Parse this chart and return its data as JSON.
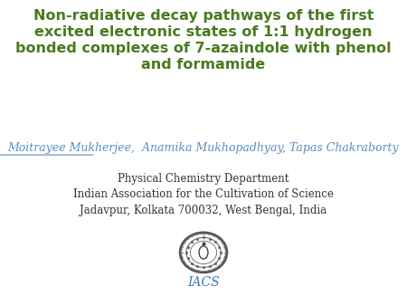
{
  "title_line1": "Non-radiative decay pathways of the first",
  "title_line2": "excited electronic states of 1:1 hydrogen",
  "title_line3": "bonded complexes of 7-azaindole with phenol",
  "title_line4": "and formamide",
  "title_color": "#4a7a1e",
  "author_underlined": "Moitrayee Mukherjee",
  "author_rest": ",  Anamika Mukhopadhyay, Tapas Chakraborty",
  "author_color": "#5b8fc4",
  "affil_line1": "Physical Chemistry Department",
  "affil_line2": "Indian Association for the Cultivation of Science",
  "affil_line3": "Jadavpur, Kolkata 700032, West Bengal, India",
  "affil_color": "#333333",
  "iacs_label": "IACS",
  "iacs_color": "#4472c4",
  "background_color": "#ffffff",
  "title_fontsize": 11.5,
  "author_fontsize": 9.0,
  "affil_fontsize": 8.5,
  "iacs_fontsize": 10
}
